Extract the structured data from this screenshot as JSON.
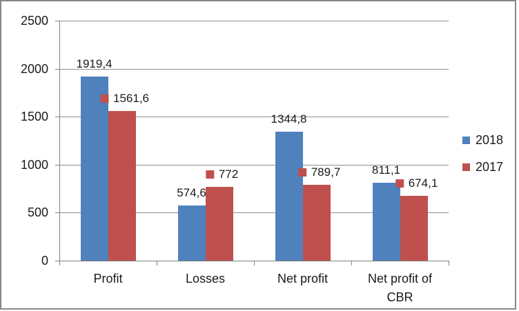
{
  "chart_data": {
    "type": "bar",
    "title": "",
    "xlabel": "",
    "ylabel": "",
    "categories": [
      "Profit",
      "Losses",
      "Net profit",
      "Net profit of CBR"
    ],
    "series": [
      {
        "name": "2018",
        "color": "#4F81BD",
        "values": [
          1919.4,
          574.6,
          1344.8,
          811.1
        ],
        "data_labels": [
          "1919,4",
          "574,6",
          "1344,8",
          "811,1"
        ],
        "legend_key_in_labels": false
      },
      {
        "name": "2017",
        "color": "#C0504D",
        "values": [
          1561.6,
          772,
          789.7,
          674.1
        ],
        "data_labels": [
          "1561,6",
          "772",
          "789,7",
          "674,1"
        ],
        "legend_key_in_labels": true
      }
    ],
    "ylim": [
      0,
      2500
    ],
    "yticks": [
      0,
      500,
      1000,
      1500,
      2000,
      2500
    ],
    "ytick_labels": [
      "0",
      "500",
      "1000",
      "1500",
      "2000",
      "2500"
    ],
    "grid": true,
    "legend_position": "right",
    "decimal_separator": ","
  },
  "colors": {
    "background": "#FFFFFF",
    "border": "#878787",
    "gridline": "#8E8E8E",
    "axis": "#808080",
    "text": "#1A1A1A"
  }
}
